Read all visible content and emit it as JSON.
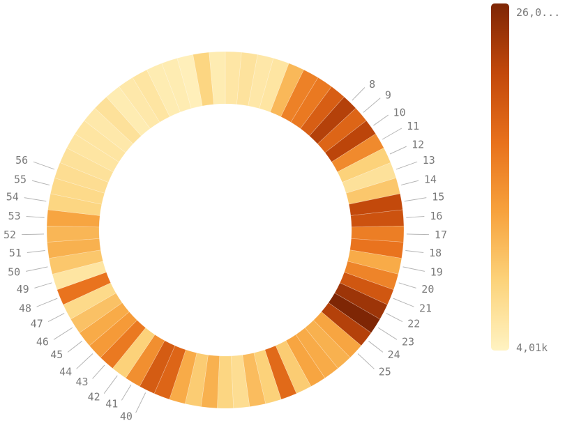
{
  "chart_data": {
    "type": "donut",
    "title": "",
    "visible_labels": [
      "8",
      "9",
      "10",
      "11",
      "12",
      "13",
      "14",
      "15",
      "16",
      "17",
      "18",
      "19",
      "20",
      "21",
      "22",
      "23",
      "24",
      "25",
      "40",
      "41",
      "42",
      "43",
      "44",
      "45",
      "46",
      "47",
      "48",
      "49",
      "50",
      "51",
      "52",
      "53",
      "54",
      "55",
      "56"
    ],
    "segments": [
      {
        "label": "",
        "value": 5800
      },
      {
        "label": "",
        "value": 6300
      },
      {
        "label": "",
        "value": 5600
      },
      {
        "label": "",
        "value": 6000
      },
      {
        "label": "",
        "value": 10800
      },
      {
        "label": "",
        "value": 15800
      },
      {
        "label": "",
        "value": 16500
      },
      {
        "label": "",
        "value": 19200
      },
      {
        "label": "8",
        "value": 22500
      },
      {
        "label": "9",
        "value": 18500
      },
      {
        "label": "10",
        "value": 22000
      },
      {
        "label": "11",
        "value": 15000
      },
      {
        "label": "12",
        "value": 8500
      },
      {
        "label": "13",
        "value": 6500
      },
      {
        "label": "14",
        "value": 9500
      },
      {
        "label": "15",
        "value": 21500
      },
      {
        "label": "16",
        "value": 20500
      },
      {
        "label": "17",
        "value": 16000
      },
      {
        "label": "18",
        "value": 17000
      },
      {
        "label": "19",
        "value": 12000
      },
      {
        "label": "20",
        "value": 15500
      },
      {
        "label": "21",
        "value": 20000
      },
      {
        "label": "22",
        "value": 24000
      },
      {
        "label": "23",
        "value": 26000
      },
      {
        "label": "24",
        "value": 22500
      },
      {
        "label": "25",
        "value": 12500
      },
      {
        "label": "",
        "value": 11500
      },
      {
        "label": "",
        "value": 12000
      },
      {
        "label": "",
        "value": 12500
      },
      {
        "label": "",
        "value": 9000
      },
      {
        "label": "",
        "value": 18000
      },
      {
        "label": "",
        "value": 8500
      },
      {
        "label": "",
        "value": 10500
      },
      {
        "label": "",
        "value": 7000
      },
      {
        "label": "",
        "value": 8000
      },
      {
        "label": "",
        "value": 11500
      },
      {
        "label": "",
        "value": 9000
      },
      {
        "label": "",
        "value": 12000
      },
      {
        "label": "",
        "value": 18500
      },
      {
        "label": "40",
        "value": 19500
      },
      {
        "label": "41",
        "value": 14500
      },
      {
        "label": "42",
        "value": 8500
      },
      {
        "label": "43",
        "value": 16500
      },
      {
        "label": "44",
        "value": 13500
      },
      {
        "label": "45",
        "value": 12000
      },
      {
        "label": "46",
        "value": 10000
      },
      {
        "label": "47",
        "value": 7500
      },
      {
        "label": "48",
        "value": 17000
      },
      {
        "label": "49",
        "value": 6000
      },
      {
        "label": "50",
        "value": 9500
      },
      {
        "label": "51",
        "value": 11500
      },
      {
        "label": "52",
        "value": 11000
      },
      {
        "label": "53",
        "value": 12500
      },
      {
        "label": "54",
        "value": 8000
      },
      {
        "label": "55",
        "value": 7500
      },
      {
        "label": "56",
        "value": 7000
      },
      {
        "label": "",
        "value": 6500
      },
      {
        "label": "",
        "value": 6000
      },
      {
        "label": "",
        "value": 6000
      },
      {
        "label": "",
        "value": 5500
      },
      {
        "label": "",
        "value": 6500
      },
      {
        "label": "",
        "value": 5000
      },
      {
        "label": "",
        "value": 5500
      },
      {
        "label": "",
        "value": 6000
      },
      {
        "label": "",
        "value": 5000
      },
      {
        "label": "",
        "value": 5000
      },
      {
        "label": "",
        "value": 4500
      },
      {
        "label": "",
        "value": 8000
      },
      {
        "label": "",
        "value": 5000
      }
    ],
    "color_scale": {
      "min": 4010,
      "max": 26000,
      "min_label": "4,01k",
      "max_label": "26,0...",
      "colors": [
        "#fff3c2",
        "#fcd37b",
        "#f7a23d",
        "#e8711c",
        "#c2480b",
        "#7e2605"
      ]
    },
    "legend_placement": "right"
  }
}
